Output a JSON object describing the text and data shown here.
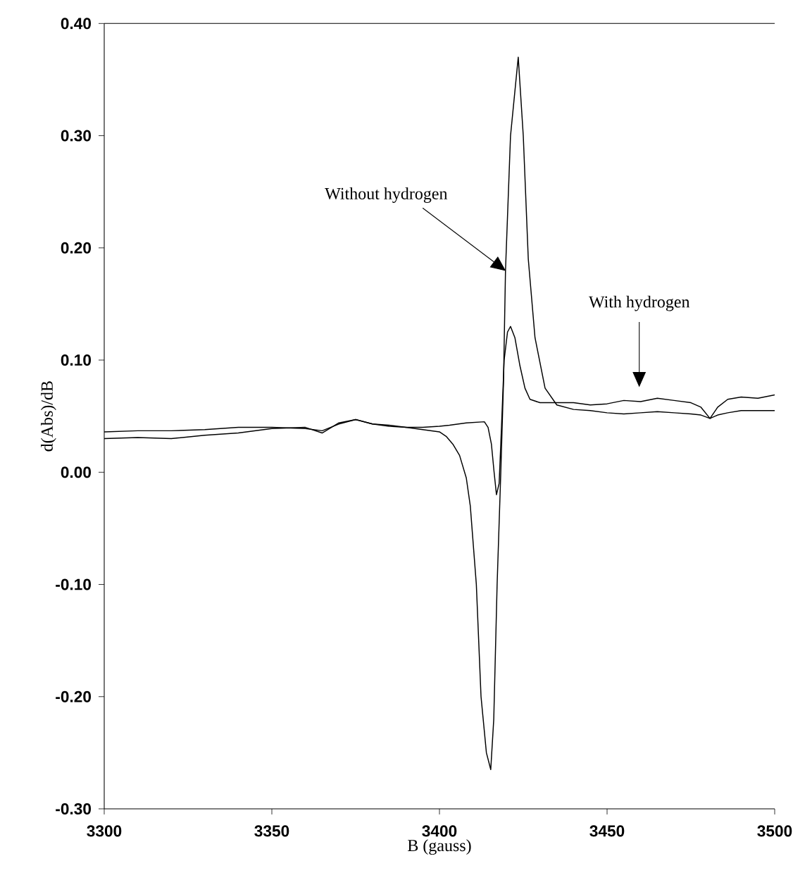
{
  "chart_data": {
    "type": "line",
    "xlabel": "B (gauss)",
    "ylabel": "d(Abs)/dB",
    "xlim": [
      3300,
      3500
    ],
    "xticks": [
      3300,
      3350,
      3400,
      3450,
      3500
    ],
    "ylim": [
      -0.3,
      0.4
    ],
    "yticks": [
      {
        "value": -0.3,
        "label": "-0.30"
      },
      {
        "value": -0.2,
        "label": "-0.20"
      },
      {
        "value": -0.1,
        "label": "-0.10"
      },
      {
        "value": 0,
        "label": "0.00"
      },
      {
        "value": 0.1,
        "label": "0.10"
      },
      {
        "value": 0.2,
        "label": "0.20"
      },
      {
        "value": 0.3,
        "label": "0.30"
      },
      {
        "value": 0.4,
        "label": "0.40"
      }
    ],
    "grid": false,
    "marker": "none",
    "line_style": "solid",
    "series": [
      {
        "color": "#000000",
        "x": [
          3300,
          3310,
          3320,
          3330,
          3340,
          3350,
          3360,
          3365,
          3370,
          3375,
          3380,
          3385,
          3390,
          3395,
          3400,
          3402,
          3404,
          3406,
          3408,
          3409.2,
          3411,
          3412.4,
          3414,
          3415.3,
          3416.2,
          3417.2,
          3418.3,
          3419.1,
          3419.7,
          3421.2,
          3423.5,
          3425,
          3426.5,
          3428.5,
          3431.5,
          3435,
          3440,
          3445,
          3450,
          3455,
          3460,
          3465,
          3470,
          3475,
          3478,
          3480.7,
          3483,
          3486,
          3490,
          3495,
          3500
        ],
        "values": [
          0.03,
          0.031,
          0.03,
          0.033,
          0.035,
          0.039,
          0.04,
          0.035,
          0.044,
          0.047,
          0.043,
          0.042,
          0.04,
          0.038,
          0.036,
          0.032,
          0.025,
          0.015,
          -0.005,
          -0.03,
          -0.1,
          -0.2,
          -0.25,
          -0.265,
          -0.22,
          -0.1,
          0.0,
          0.08,
          0.18,
          0.3,
          0.37,
          0.3,
          0.19,
          0.12,
          0.075,
          0.06,
          0.056,
          0.055,
          0.053,
          0.052,
          0.053,
          0.054,
          0.053,
          0.052,
          0.051,
          0.048,
          0.051,
          0.053,
          0.055,
          0.055,
          0.055
        ]
      },
      {
        "color": "#000000",
        "x": [
          3300,
          3310,
          3320,
          3330,
          3340,
          3350,
          3360,
          3365,
          3370,
          3375,
          3380,
          3385,
          3390,
          3395,
          3400,
          3403,
          3408,
          3413.4,
          3414.5,
          3415.5,
          3416.3,
          3417,
          3417.8,
          3418.5,
          3419.3,
          3420.3,
          3421.2,
          3422.5,
          3424,
          3425.5,
          3427,
          3430,
          3435,
          3440,
          3445,
          3450,
          3455,
          3460,
          3465,
          3470,
          3475,
          3478,
          3480.7,
          3483,
          3486,
          3490,
          3495,
          3500
        ],
        "values": [
          0.036,
          0.037,
          0.037,
          0.038,
          0.04,
          0.04,
          0.039,
          0.037,
          0.043,
          0.047,
          0.043,
          0.041,
          0.04,
          0.04,
          0.041,
          0.042,
          0.044,
          0.045,
          0.04,
          0.025,
          0.0,
          -0.02,
          -0.01,
          0.04,
          0.1,
          0.125,
          0.13,
          0.12,
          0.095,
          0.075,
          0.065,
          0.062,
          0.062,
          0.062,
          0.06,
          0.061,
          0.064,
          0.063,
          0.066,
          0.064,
          0.062,
          0.058,
          0.048,
          0.058,
          0.065,
          0.067,
          0.066,
          0.069
        ]
      }
    ],
    "annotations": [
      "Without hydrogen",
      "With hydrogen"
    ]
  }
}
